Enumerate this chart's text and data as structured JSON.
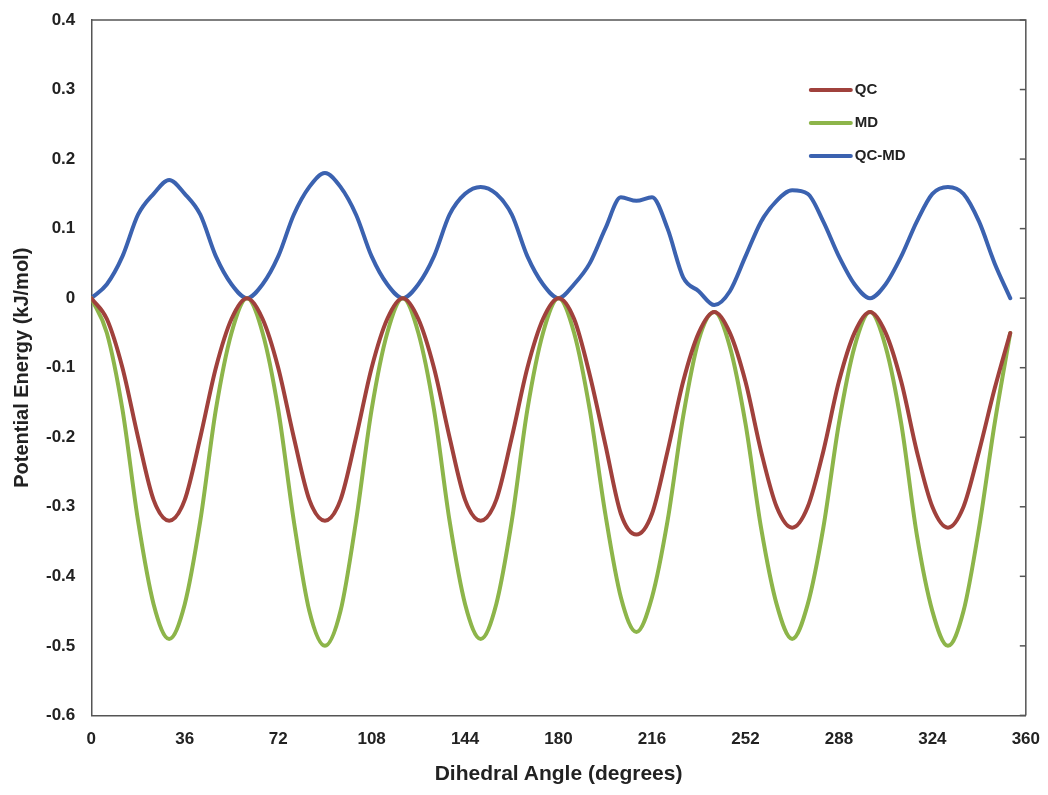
{
  "chart_data": {
    "type": "line",
    "xlabel": "Dihedral Angle (degrees)",
    "ylabel": "Potential Energy (kJ/mol)",
    "x": [
      0,
      6,
      12,
      18,
      24,
      30,
      36,
      42,
      48,
      54,
      60,
      66,
      72,
      78,
      84,
      90,
      96,
      102,
      108,
      114,
      120,
      126,
      132,
      138,
      144,
      150,
      156,
      162,
      168,
      174,
      180,
      186,
      192,
      198,
      204,
      210,
      216,
      222,
      228,
      234,
      240,
      246,
      252,
      258,
      264,
      270,
      276,
      282,
      288,
      294,
      300,
      306,
      312,
      318,
      324,
      330,
      336,
      342,
      348,
      354
    ],
    "series": [
      {
        "name": "QC",
        "color": "#a0413c",
        "values": [
          0,
          -0.03,
          -0.1,
          -0.2,
          -0.29,
          -0.32,
          -0.29,
          -0.2,
          -0.1,
          -0.03,
          0,
          -0.03,
          -0.1,
          -0.2,
          -0.29,
          -0.32,
          -0.29,
          -0.2,
          -0.1,
          -0.03,
          0,
          -0.03,
          -0.1,
          -0.2,
          -0.29,
          -0.32,
          -0.29,
          -0.2,
          -0.1,
          -0.03,
          0,
          -0.03,
          -0.11,
          -0.21,
          -0.31,
          -0.34,
          -0.31,
          -0.22,
          -0.12,
          -0.05,
          -0.02,
          -0.05,
          -0.12,
          -0.22,
          -0.3,
          -0.33,
          -0.3,
          -0.22,
          -0.12,
          -0.05,
          -0.02,
          -0.05,
          -0.12,
          -0.22,
          -0.3,
          -0.33,
          -0.3,
          -0.22,
          -0.13,
          -0.05
        ]
      },
      {
        "name": "MD",
        "color": "#8db54a",
        "values": [
          0,
          -0.05,
          -0.16,
          -0.32,
          -0.44,
          -0.49,
          -0.44,
          -0.32,
          -0.16,
          -0.05,
          0,
          -0.05,
          -0.16,
          -0.32,
          -0.45,
          -0.5,
          -0.45,
          -0.32,
          -0.16,
          -0.05,
          0,
          -0.05,
          -0.16,
          -0.32,
          -0.44,
          -0.49,
          -0.44,
          -0.32,
          -0.16,
          -0.05,
          0,
          -0.05,
          -0.16,
          -0.31,
          -0.43,
          -0.48,
          -0.43,
          -0.32,
          -0.17,
          -0.06,
          -0.02,
          -0.07,
          -0.18,
          -0.33,
          -0.44,
          -0.49,
          -0.44,
          -0.33,
          -0.18,
          -0.07,
          -0.02,
          -0.07,
          -0.18,
          -0.34,
          -0.45,
          -0.5,
          -0.45,
          -0.33,
          -0.18,
          -0.05
        ]
      },
      {
        "name": "QC-MD",
        "color": "#3b62b0",
        "values": [
          0,
          0.02,
          0.06,
          0.12,
          0.15,
          0.17,
          0.15,
          0.12,
          0.06,
          0.02,
          0,
          0.02,
          0.06,
          0.12,
          0.16,
          0.18,
          0.16,
          0.12,
          0.06,
          0.02,
          0,
          0.02,
          0.06,
          0.12,
          0.15,
          0.16,
          0.15,
          0.12,
          0.06,
          0.02,
          0,
          0.02,
          0.05,
          0.1,
          0.145,
          0.14,
          0.145,
          0.1,
          0.03,
          0.01,
          -0.01,
          0.01,
          0.06,
          0.11,
          0.14,
          0.155,
          0.15,
          0.11,
          0.06,
          0.02,
          0,
          0.02,
          0.06,
          0.11,
          0.15,
          0.16,
          0.15,
          0.11,
          0.05,
          0
        ]
      }
    ],
    "xlim": [
      0,
      360
    ],
    "xticks": [
      0,
      36,
      72,
      108,
      144,
      180,
      216,
      252,
      288,
      324,
      360
    ],
    "ylim": [
      -0.6,
      0.4
    ],
    "yticks": [
      -0.6,
      -0.5,
      -0.4,
      -0.3,
      -0.2,
      -0.1,
      0,
      0.1,
      0.2,
      0.3,
      0.4
    ],
    "grid": false,
    "legend": "top right",
    "marker": "none",
    "line_style": "solid"
  }
}
